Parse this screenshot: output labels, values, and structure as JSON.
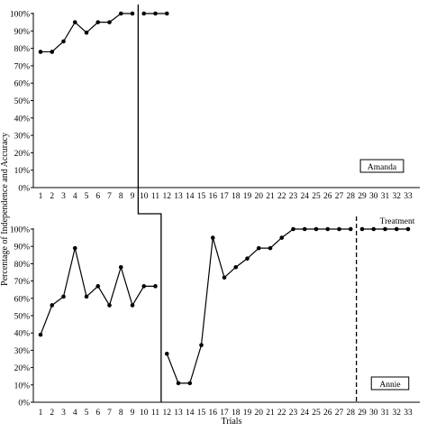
{
  "chart_data": {
    "type": "line",
    "ylabel": "Percentage of Independence and Accuracy",
    "xlabel": "Trials",
    "y_ticks": [
      "0%",
      "10%",
      "20%",
      "30%",
      "40%",
      "50%",
      "60%",
      "70%",
      "80%",
      "90%",
      "100%"
    ],
    "x_ticks": [
      "1",
      "2",
      "3",
      "4",
      "5",
      "6",
      "7",
      "8",
      "9",
      "10",
      "11",
      "12",
      "13",
      "14",
      "15",
      "16",
      "17",
      "18",
      "19",
      "20",
      "21",
      "22",
      "23",
      "24",
      "25",
      "26",
      "27",
      "28",
      "29",
      "30",
      "31",
      "32",
      "33"
    ],
    "ylim": [
      0,
      100
    ],
    "xlim": [
      1,
      33
    ],
    "phase_label": "Treatment",
    "panels": [
      {
        "participant": "Amanda",
        "series": [
          {
            "x": [
              1,
              2,
              3,
              4,
              5,
              6,
              7,
              8,
              9
            ],
            "values": [
              78,
              78,
              84,
              95,
              89,
              95,
              95,
              100,
              100
            ]
          },
          {
            "x": [
              10,
              11,
              12
            ],
            "values": [
              100,
              100,
              100
            ]
          }
        ],
        "phase_change_after": 9
      },
      {
        "participant": "Annie",
        "series": [
          {
            "x": [
              1,
              2,
              3,
              4,
              5,
              6,
              7,
              8,
              9,
              10,
              11
            ],
            "values": [
              39,
              56,
              61,
              89,
              61,
              67,
              56,
              78,
              56,
              67,
              67
            ]
          },
          {
            "x": [
              12,
              13,
              14,
              15,
              16,
              17,
              18,
              19,
              20,
              21,
              22,
              23,
              24,
              25,
              26,
              27,
              28
            ],
            "values": [
              28,
              11,
              11,
              33,
              95,
              72,
              78,
              83,
              89,
              89,
              95,
              100,
              100,
              100,
              100,
              100,
              100
            ]
          },
          {
            "x": [
              29,
              30,
              31,
              32,
              33
            ],
            "values": [
              100,
              100,
              100,
              100,
              100
            ]
          }
        ],
        "phase_change_after": 11,
        "treatment_line_after": 28
      }
    ]
  }
}
